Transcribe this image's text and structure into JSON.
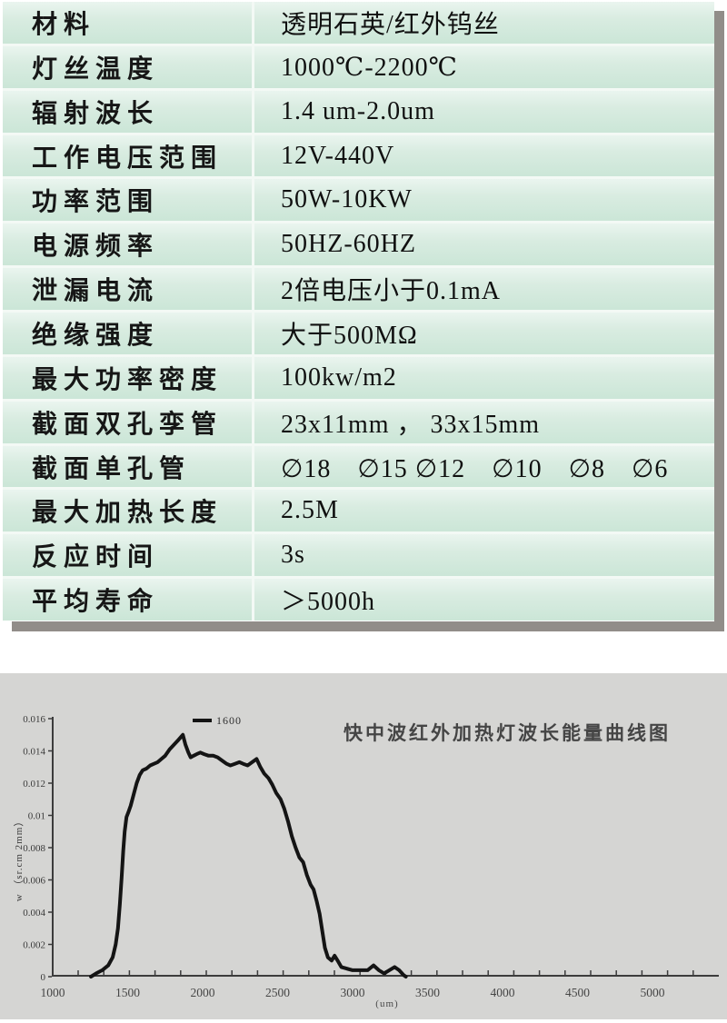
{
  "page": {
    "background": "#ffffff"
  },
  "table": {
    "rows": [
      {
        "label": "材料",
        "value": "透明石英/红外钨丝"
      },
      {
        "label": "灯丝温度",
        "value": "1000℃-2200℃"
      },
      {
        "label": "辐射波长",
        "value": "1.4 um-2.0um"
      },
      {
        "label": "工作电压范围",
        "value": "12V-440V"
      },
      {
        "label": "功率范围",
        "value": "50W-10KW"
      },
      {
        "label": "电源频率",
        "value": "50HZ-60HZ"
      },
      {
        "label": "泄漏电流",
        "value": "2倍电压小于0.1mA"
      },
      {
        "label": "绝缘强度",
        "value": "大于500MΩ"
      },
      {
        "label": "最大功率密度",
        "value": "100kw/m2"
      },
      {
        "label": "截面双孔孪管",
        "value": "23x11mm ， 33x15mm"
      },
      {
        "label": "截面单孔管",
        "value": "∅18　∅15 ∅12　∅10　∅8　∅6"
      },
      {
        "label": "最大加热长度",
        "value": "2.5M"
      },
      {
        "label": "反应时间",
        "value": "3s"
      },
      {
        "label": "平均寿命",
        "value": "＞5000h"
      }
    ],
    "colors": {
      "row_gradient_top": "#eaf5ef",
      "row_gradient_bottom": "#cbe6d7",
      "separator": "#f3f9f5",
      "shadow": "#918d89",
      "text": "#161616"
    }
  },
  "chart_data": {
    "type": "line",
    "title": "快中波红外加热灯波长能量曲线图",
    "xlabel": "(um)",
    "ylabel": "w （sr.cm 2mm）",
    "legend": {
      "label": "1600",
      "position": "top-left"
    },
    "x_ticks": [
      1000,
      1500,
      2000,
      2500,
      3000,
      3500,
      4000,
      4500,
      5000
    ],
    "y_ticks": [
      0,
      0.002,
      0.004,
      0.006,
      0.008,
      0.01,
      0.012,
      0.014,
      0.016
    ],
    "y_tick_labels": [
      "0",
      "0.002",
      "0.004",
      "0.006",
      "0.008",
      "0.01",
      "0.012",
      "0.014",
      "0.016"
    ],
    "xlim": [
      1000,
      5440
    ],
    "ylim": [
      0,
      0.016
    ],
    "grid": false,
    "panel_color": "#d5d5d3",
    "axis_color": "#3c3c3c",
    "series": [
      {
        "name": "1600",
        "color": "#141414",
        "points": [
          [
            1255,
            0
          ],
          [
            1290,
            0.0002
          ],
          [
            1330,
            0.0004
          ],
          [
            1370,
            0.0007
          ],
          [
            1400,
            0.0012
          ],
          [
            1420,
            0.002
          ],
          [
            1435,
            0.003
          ],
          [
            1448,
            0.0045
          ],
          [
            1460,
            0.0062
          ],
          [
            1470,
            0.0078
          ],
          [
            1480,
            0.009
          ],
          [
            1492,
            0.0099
          ],
          [
            1505,
            0.0102
          ],
          [
            1520,
            0.0106
          ],
          [
            1540,
            0.0113
          ],
          [
            1560,
            0.012
          ],
          [
            1580,
            0.0125
          ],
          [
            1600,
            0.0128
          ],
          [
            1625,
            0.0129
          ],
          [
            1650,
            0.0131
          ],
          [
            1675,
            0.0132
          ],
          [
            1700,
            0.0133
          ],
          [
            1725,
            0.0135
          ],
          [
            1750,
            0.0137
          ],
          [
            1780,
            0.0141
          ],
          [
            1810,
            0.0144
          ],
          [
            1840,
            0.0147
          ],
          [
            1868,
            0.015
          ],
          [
            1885,
            0.0144
          ],
          [
            1905,
            0.0139
          ],
          [
            1920,
            0.0136
          ],
          [
            1940,
            0.0137
          ],
          [
            1960,
            0.0138
          ],
          [
            1985,
            0.0139
          ],
          [
            2010,
            0.0138
          ],
          [
            2040,
            0.0137
          ],
          [
            2070,
            0.0137
          ],
          [
            2100,
            0.0136
          ],
          [
            2130,
            0.0134
          ],
          [
            2160,
            0.0132
          ],
          [
            2185,
            0.0131
          ],
          [
            2215,
            0.0132
          ],
          [
            2245,
            0.0133
          ],
          [
            2270,
            0.0132
          ],
          [
            2300,
            0.0131
          ],
          [
            2330,
            0.0133
          ],
          [
            2360,
            0.0135
          ],
          [
            2385,
            0.013
          ],
          [
            2410,
            0.0126
          ],
          [
            2440,
            0.0123
          ],
          [
            2465,
            0.0119
          ],
          [
            2490,
            0.0114
          ],
          [
            2520,
            0.011
          ],
          [
            2545,
            0.0104
          ],
          [
            2570,
            0.0096
          ],
          [
            2595,
            0.0087
          ],
          [
            2620,
            0.008
          ],
          [
            2645,
            0.0074
          ],
          [
            2670,
            0.0071
          ],
          [
            2695,
            0.0063
          ],
          [
            2720,
            0.0057
          ],
          [
            2740,
            0.0054
          ],
          [
            2760,
            0.0047
          ],
          [
            2780,
            0.0039
          ],
          [
            2800,
            0.0027
          ],
          [
            2815,
            0.0018
          ],
          [
            2835,
            0.0012
          ],
          [
            2860,
            0.001
          ],
          [
            2880,
            0.0013
          ],
          [
            2900,
            0.001
          ],
          [
            2925,
            0.0006
          ],
          [
            2960,
            0.0005
          ],
          [
            3000,
            0.0004
          ],
          [
            3050,
            0.0004
          ],
          [
            3100,
            0.0004
          ],
          [
            3140,
            0.0007
          ],
          [
            3175,
            0.0004
          ],
          [
            3210,
            0.0002
          ],
          [
            3245,
            0.0004
          ],
          [
            3280,
            0.0006
          ],
          [
            3310,
            0.0004
          ],
          [
            3340,
            0.0001
          ],
          [
            3355,
            0
          ]
        ]
      }
    ]
  }
}
